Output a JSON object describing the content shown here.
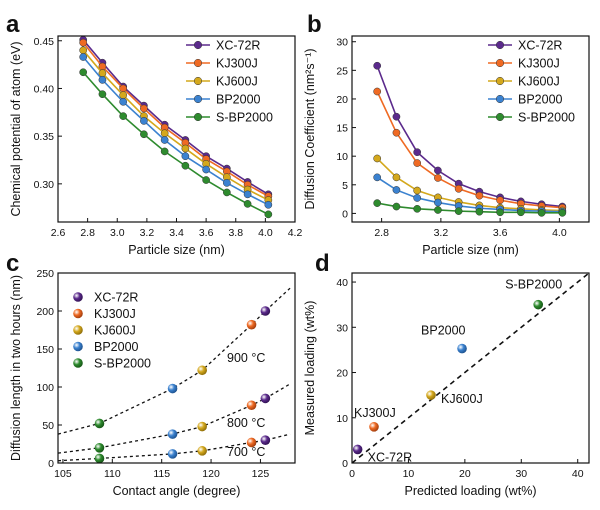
{
  "colors": {
    "XC-72R": "#5b2a8c",
    "KJ300J": "#ef6a23",
    "KJ600J": "#d4a81c",
    "BP2000": "#3b82d0",
    "S-BP2000": "#2e8b2e"
  },
  "chart_data": [
    {
      "panel": "a",
      "type": "line",
      "xlabel": "Particle size (nm)",
      "ylabel": "Chemical potential of atom (eV)",
      "xlim": [
        2.6,
        4.2
      ],
      "ylim": [
        0.26,
        0.455
      ],
      "xticks": [
        "2.6",
        "2.8",
        "3.0",
        "3.2",
        "3.4",
        "3.6",
        "3.8",
        "4.0",
        "4.2"
      ],
      "yticks": [
        "0.30",
        "0.35",
        "0.40",
        "0.45"
      ],
      "legend": "top-right",
      "x": [
        2.77,
        2.9,
        3.04,
        3.18,
        3.32,
        3.46,
        3.6,
        3.74,
        3.88,
        4.02
      ],
      "series": [
        {
          "name": "XC-72R",
          "values": [
            0.451,
            0.427,
            0.402,
            0.382,
            0.362,
            0.346,
            0.329,
            0.316,
            0.302,
            0.289
          ]
        },
        {
          "name": "KJ300J",
          "values": [
            0.448,
            0.423,
            0.4,
            0.379,
            0.359,
            0.343,
            0.326,
            0.313,
            0.299,
            0.287
          ]
        },
        {
          "name": "KJ600J",
          "values": [
            0.44,
            0.416,
            0.393,
            0.371,
            0.353,
            0.337,
            0.321,
            0.307,
            0.294,
            0.283
          ]
        },
        {
          "name": "BP2000",
          "values": [
            0.433,
            0.409,
            0.386,
            0.366,
            0.346,
            0.329,
            0.315,
            0.301,
            0.289,
            0.278
          ]
        },
        {
          "name": "S-BP2000",
          "values": [
            0.417,
            0.394,
            0.371,
            0.352,
            0.334,
            0.319,
            0.304,
            0.291,
            0.279,
            0.268
          ]
        }
      ]
    },
    {
      "panel": "b",
      "type": "line",
      "xlabel": "Particle size (nm)",
      "ylabel": "Diffusion Coefficient (nm²s⁻¹)",
      "xlim": [
        2.6,
        4.2
      ],
      "ylim": [
        -1.5,
        31
      ],
      "xticks": [
        "2.8",
        "3.2",
        "3.6",
        "4.0"
      ],
      "yticks": [
        "0",
        "5",
        "10",
        "15",
        "20",
        "25",
        "30"
      ],
      "legend": "top-right",
      "x": [
        2.77,
        2.9,
        3.04,
        3.18,
        3.32,
        3.46,
        3.6,
        3.74,
        3.88,
        4.02
      ],
      "series": [
        {
          "name": "XC-72R",
          "values": [
            25.8,
            16.9,
            10.7,
            7.5,
            5.2,
            3.8,
            2.8,
            2.1,
            1.6,
            1.2
          ]
        },
        {
          "name": "KJ300J",
          "values": [
            21.3,
            14.1,
            8.8,
            6.2,
            4.3,
            3.1,
            2.3,
            1.7,
            1.3,
            1.0
          ]
        },
        {
          "name": "KJ600J",
          "values": [
            9.6,
            6.3,
            4.0,
            2.8,
            2.0,
            1.4,
            1.0,
            0.8,
            0.6,
            0.5
          ]
        },
        {
          "name": "BP2000",
          "values": [
            6.3,
            4.1,
            2.7,
            1.9,
            1.3,
            0.9,
            0.7,
            0.5,
            0.4,
            0.3
          ]
        },
        {
          "name": "S-BP2000",
          "values": [
            1.8,
            1.2,
            0.8,
            0.6,
            0.4,
            0.3,
            0.2,
            0.2,
            0.1,
            0.1
          ]
        }
      ]
    },
    {
      "panel": "c",
      "type": "scatter",
      "xlabel": "Contact angle (degree)",
      "ylabel": "Diffusion length in two hours (nm)",
      "xlim": [
        104.5,
        128.5
      ],
      "ylim": [
        0,
        250
      ],
      "xticks": [
        "105",
        "110",
        "115",
        "120",
        "125"
      ],
      "yticks": [
        "0",
        "50",
        "100",
        "150",
        "200",
        "250"
      ],
      "legend": "top-left",
      "annotations": [
        "900 °C",
        "800 °C",
        "700 °C"
      ],
      "fit_curves": [
        {
          "label": "900 °C",
          "x": [
            104.5,
            108.7,
            116.1,
            119.1,
            124.1,
            125.5,
            128.0
          ],
          "values": [
            38,
            52,
            98,
            122,
            182,
            200,
            230
          ]
        },
        {
          "label": "800 °C",
          "x": [
            104.5,
            108.7,
            116.1,
            119.1,
            124.1,
            125.5,
            128.0
          ],
          "values": [
            13,
            20,
            38,
            48,
            76,
            85,
            104
          ]
        },
        {
          "label": "700 °C",
          "x": [
            104.5,
            108.7,
            116.1,
            119.1,
            124.1,
            125.5,
            128.0
          ],
          "values": [
            3,
            6,
            12,
            16,
            27,
            30,
            38
          ]
        }
      ],
      "series": [
        {
          "name": "XC-72R",
          "x": [
            125.5,
            125.5,
            125.5
          ],
          "values": [
            200,
            85,
            30
          ]
        },
        {
          "name": "KJ300J",
          "x": [
            124.1,
            124.1,
            124.1
          ],
          "values": [
            182,
            76,
            27
          ]
        },
        {
          "name": "KJ600J",
          "x": [
            119.1,
            119.1,
            119.1
          ],
          "values": [
            122,
            48,
            16
          ]
        },
        {
          "name": "BP2000",
          "x": [
            116.1,
            116.1,
            116.1
          ],
          "values": [
            98,
            38,
            12
          ]
        },
        {
          "name": "S-BP2000",
          "x": [
            108.7,
            108.7,
            108.7
          ],
          "values": [
            52,
            20,
            6
          ]
        }
      ]
    },
    {
      "panel": "d",
      "type": "scatter",
      "xlabel": "Predicted loading (wt%)",
      "ylabel": "Measured loading (wt%)",
      "xlim": [
        0,
        42
      ],
      "ylim": [
        0,
        42
      ],
      "xticks": [
        "0",
        "10",
        "20",
        "30",
        "40"
      ],
      "yticks": [
        "0",
        "10",
        "20",
        "30",
        "40"
      ],
      "reference_line": "y = x",
      "series": [
        {
          "name": "XC-72R",
          "x": [
            1.0
          ],
          "values": [
            3.0
          ]
        },
        {
          "name": "KJ300J",
          "x": [
            3.9
          ],
          "values": [
            8.0
          ]
        },
        {
          "name": "KJ600J",
          "x": [
            14.0
          ],
          "values": [
            15.0
          ]
        },
        {
          "name": "BP2000",
          "x": [
            19.5
          ],
          "values": [
            25.3
          ]
        },
        {
          "name": "S-BP2000",
          "x": [
            33.0
          ],
          "values": [
            35.0
          ]
        }
      ]
    }
  ],
  "panel_labels": [
    "a",
    "b",
    "c",
    "d"
  ]
}
